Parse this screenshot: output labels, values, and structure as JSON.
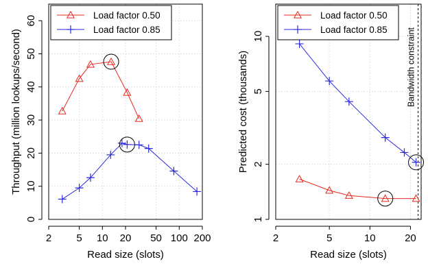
{
  "chart_data": [
    {
      "type": "line",
      "xlabel": "Read size (slots)",
      "ylabel": "Throughput (million lookups/second)",
      "x_scale": "log",
      "y_scale": "linear",
      "xlim": [
        2,
        200
      ],
      "ylim": [
        0,
        65
      ],
      "x_ticks": [
        2,
        5,
        10,
        20,
        50,
        100,
        200
      ],
      "x_tick_labels": [
        "2",
        "5",
        "10",
        "20",
        "50",
        "100",
        "200"
      ],
      "y_ticks": [
        0,
        10,
        20,
        30,
        40,
        50,
        60
      ],
      "y_tick_labels": [
        "0",
        "10",
        "20",
        "30",
        "40",
        "50",
        "60"
      ],
      "grid": true,
      "legend_position": "top-left",
      "series": [
        {
          "name": "Load factor 0.50",
          "color": "#e8281e",
          "marker": "triangle",
          "x": [
            3,
            5,
            7,
            13,
            21,
            30
          ],
          "y": [
            32.7,
            42.5,
            46.8,
            47.6,
            38.3,
            30.4
          ]
        },
        {
          "name": "Load factor 0.85",
          "color": "#2929e0",
          "marker": "plus",
          "x": [
            3,
            5,
            7,
            12.8,
            18,
            21,
            30,
            40,
            85,
            170
          ],
          "y": [
            6.1,
            9.5,
            12.6,
            19.5,
            23.0,
            22.6,
            22.5,
            21.4,
            14.6,
            8.4
          ]
        }
      ],
      "highlighted_points": [
        {
          "series": "Load factor 0.50",
          "x": 13,
          "y": 47.6
        },
        {
          "series": "Load factor 0.85",
          "x": 21,
          "y": 22.6
        }
      ]
    },
    {
      "type": "line",
      "xlabel": "Read size (slots)",
      "ylabel": "Predicted cost (thousands)",
      "x_scale": "log",
      "y_scale": "log",
      "xlim": [
        2,
        24
      ],
      "ylim": [
        1,
        15
      ],
      "x_ticks": [
        2,
        5,
        10,
        20
      ],
      "x_tick_labels": [
        "2",
        "5",
        "10",
        "20"
      ],
      "y_ticks": [
        1,
        2,
        5,
        10
      ],
      "y_tick_labels": [
        "1",
        "2",
        "5",
        "10"
      ],
      "grid": true,
      "legend_position": "top-left",
      "series": [
        {
          "name": "Load factor 0.50",
          "color": "#e8281e",
          "marker": "triangle",
          "x": [
            3,
            5,
            7,
            13,
            22
          ],
          "y": [
            1.66,
            1.44,
            1.35,
            1.3,
            1.3
          ]
        },
        {
          "name": "Load factor 0.85",
          "color": "#2929e0",
          "marker": "plus",
          "x": [
            3,
            5,
            7,
            13,
            18,
            22
          ],
          "y": [
            9.1,
            5.7,
            4.4,
            2.8,
            2.32,
            2.05
          ]
        }
      ],
      "highlighted_points": [
        {
          "series": "Load factor 0.50",
          "x": 13,
          "y": 1.3
        },
        {
          "series": "Load factor 0.85",
          "x": 22,
          "y": 2.05
        }
      ],
      "vline": {
        "x": 22.8,
        "label": "Bandwidth constraint",
        "style": "dashed"
      }
    }
  ]
}
